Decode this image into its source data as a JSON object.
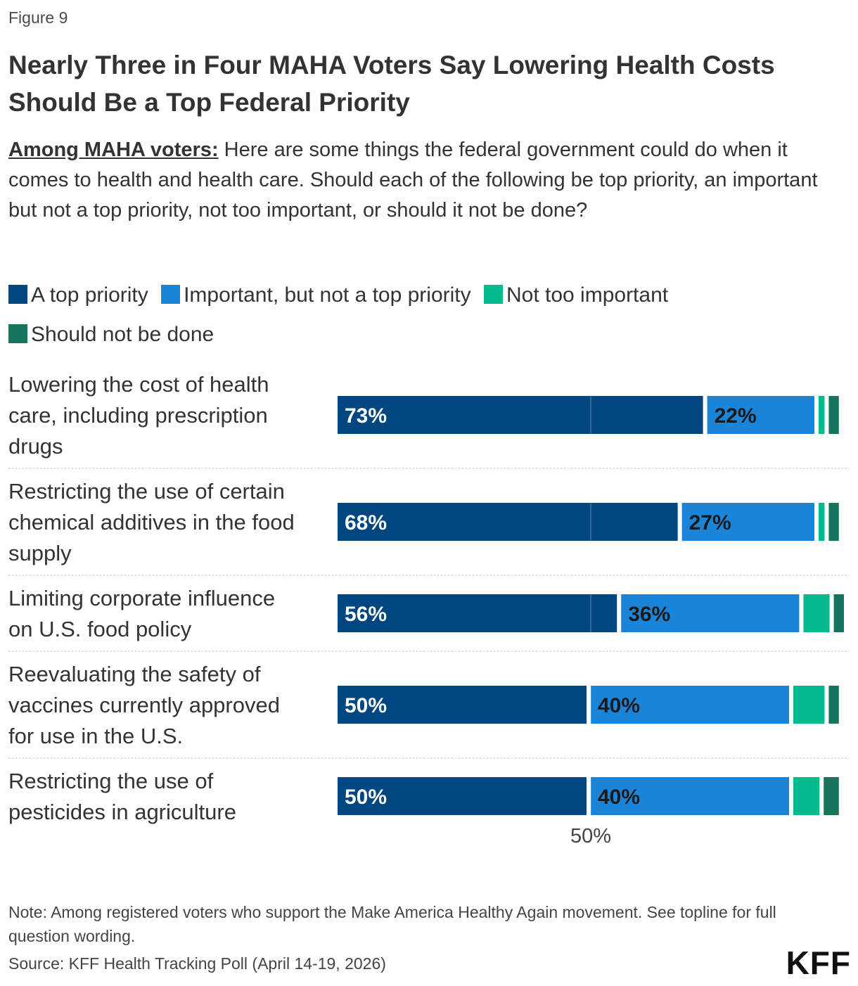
{
  "figure_label": "Figure 9",
  "colors": {
    "top_priority": "#004782",
    "important": "#1a85d8",
    "not_too_important": "#00b98c",
    "should_not_be_done": "#18755d"
  },
  "chart_data": {
    "type": "bar",
    "orientation": "horizontal",
    "stacked": true,
    "title": "Nearly Three in Four MAHA Voters Say Lowering Health Costs Should Be a Top Federal Priority",
    "subtitle_lead": "Among MAHA voters:",
    "subtitle_text": " Here are some things the federal government could do when it comes to health and health care. Should each of the following be top priority, an important but not a top priority, not too important, or should it not be done?",
    "legend_position": "top",
    "xlim": [
      0,
      100
    ],
    "reference_line": {
      "value": 50,
      "label": "50%"
    },
    "categories": [
      "Lowering the cost of health care, including prescription drugs",
      "Restricting the use of certain chemical additives in the food supply",
      "Limiting corporate influence on U.S. food policy",
      "Reevaluating the safety of vaccines currently approved for use in the U.S.",
      "Restricting the use of pesticides in agriculture"
    ],
    "series": [
      {
        "name": "A top priority",
        "values": [
          73,
          68,
          56,
          50,
          50
        ],
        "labels": [
          "73%",
          "68%",
          "56%",
          "50%",
          "50%"
        ]
      },
      {
        "name": "Important, but not a top priority",
        "values": [
          22,
          27,
          36,
          40,
          40
        ],
        "labels": [
          "22%",
          "27%",
          "36%",
          "40%",
          "40%"
        ]
      },
      {
        "name": "Not too important",
        "values": [
          2,
          2,
          6,
          7,
          6
        ],
        "labels": [
          "",
          "",
          "",
          "",
          ""
        ]
      },
      {
        "name": "Should not be done",
        "values": [
          2,
          2,
          2,
          2,
          3
        ],
        "labels": [
          "",
          "",
          "",
          "",
          ""
        ]
      }
    ]
  },
  "note": "Note: Among registered voters who support the Make America Healthy Again movement. See topline for full question wording.",
  "source": "Source: KFF Health Tracking Poll (April 14-19, 2026)",
  "logo_text": "KFF"
}
